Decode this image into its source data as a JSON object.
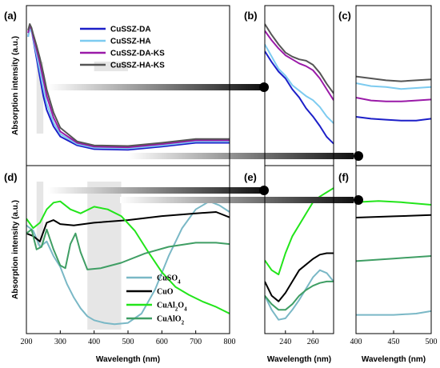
{
  "panel_labels": {
    "a": "(a)",
    "b": "(b)",
    "c": "(c)",
    "d": "(d)",
    "e": "(e)",
    "f": "(f)"
  },
  "axes": {
    "ylabel": "Absorption intensity (a.u.)",
    "xlabel": "Wavelength (nm)",
    "main_x_ticks": [
      "200",
      "300",
      "400",
      "500",
      "600",
      "700",
      "800"
    ],
    "zoom_e_ticks": [
      "240",
      "260"
    ],
    "zoom_f_ticks": [
      "400",
      "450",
      "500"
    ]
  },
  "colors": {
    "CuSSZ-DA": "#1c1fc8",
    "CuSSZ-HA": "#7dcbf0",
    "CuSSZ-DA-KS": "#9a1aa8",
    "CuSSZ-HA-KS": "#555555",
    "CuSO4": "#7ab8c6",
    "CuO": "#000000",
    "CuAl2O4": "#22e51a",
    "CuAlO2": "#3f9e64",
    "highlight": "#e6e6e6"
  },
  "chart_data": [
    {
      "type": "line",
      "panel": "a",
      "xlabel": "",
      "ylabel": "Absorption intensity (a.u.)",
      "xlim": [
        200,
        800
      ],
      "legend_position": "top-center",
      "highlight_ranges": [
        [
          230,
          250
        ],
        [
          400,
          500
        ]
      ],
      "series": [
        {
          "name": "CuSSZ-DA",
          "x": [
            205,
            210,
            215,
            220,
            230,
            240,
            250,
            260,
            280,
            300,
            350,
            400,
            500,
            600,
            700,
            800
          ],
          "y": [
            0.9,
            0.97,
            0.95,
            0.88,
            0.73,
            0.58,
            0.43,
            0.32,
            0.19,
            0.11,
            0.04,
            0.01,
            0.005,
            0.03,
            0.06,
            0.06
          ]
        },
        {
          "name": "CuSSZ-HA",
          "x": [
            205,
            210,
            215,
            220,
            230,
            240,
            250,
            260,
            280,
            300,
            350,
            400,
            500,
            600,
            700,
            800
          ],
          "y": [
            0.9,
            0.96,
            0.94,
            0.89,
            0.76,
            0.63,
            0.49,
            0.37,
            0.22,
            0.13,
            0.05,
            0.02,
            0.015,
            0.04,
            0.07,
            0.07
          ]
        },
        {
          "name": "CuSSZ-DA-KS",
          "x": [
            205,
            210,
            215,
            220,
            230,
            240,
            250,
            260,
            280,
            300,
            350,
            400,
            500,
            600,
            700,
            800
          ],
          "y": [
            0.93,
            0.99,
            0.96,
            0.9,
            0.8,
            0.69,
            0.56,
            0.43,
            0.26,
            0.15,
            0.06,
            0.03,
            0.025,
            0.05,
            0.08,
            0.08
          ]
        },
        {
          "name": "CuSSZ-HA-KS",
          "x": [
            205,
            210,
            215,
            220,
            230,
            240,
            250,
            260,
            280,
            300,
            350,
            400,
            500,
            600,
            700,
            800
          ],
          "y": [
            0.95,
            1.0,
            0.97,
            0.92,
            0.83,
            0.73,
            0.61,
            0.48,
            0.3,
            0.18,
            0.07,
            0.04,
            0.035,
            0.06,
            0.09,
            0.09
          ]
        }
      ]
    },
    {
      "type": "line",
      "panel": "b",
      "xlabel": "",
      "ylabel": "",
      "xlim": [
        230,
        250
      ],
      "series": [
        {
          "name": "CuSSZ-DA",
          "x": [
            230,
            232,
            234,
            236,
            238,
            240,
            242,
            244,
            246,
            248,
            250
          ],
          "y": [
            0.8,
            0.72,
            0.65,
            0.6,
            0.52,
            0.46,
            0.38,
            0.32,
            0.25,
            0.17,
            0.12
          ]
        },
        {
          "name": "CuSSZ-HA",
          "x": [
            230,
            232,
            234,
            236,
            238,
            240,
            242,
            244,
            246,
            248,
            250
          ],
          "y": [
            0.85,
            0.76,
            0.67,
            0.62,
            0.55,
            0.51,
            0.47,
            0.44,
            0.39,
            0.32,
            0.27
          ]
        },
        {
          "name": "CuSSZ-DA-KS",
          "x": [
            230,
            232,
            234,
            236,
            238,
            240,
            242,
            244,
            246,
            248,
            250
          ],
          "y": [
            0.95,
            0.88,
            0.82,
            0.77,
            0.74,
            0.71,
            0.69,
            0.66,
            0.6,
            0.52,
            0.44
          ]
        },
        {
          "name": "CuSSZ-HA-KS",
          "x": [
            230,
            232,
            234,
            236,
            238,
            240,
            242,
            244,
            246,
            248,
            250
          ],
          "y": [
            1.0,
            0.92,
            0.85,
            0.79,
            0.76,
            0.74,
            0.73,
            0.7,
            0.64,
            0.56,
            0.49
          ]
        }
      ]
    },
    {
      "type": "line",
      "panel": "c",
      "xlabel": "",
      "ylabel": "",
      "xlim": [
        400,
        500
      ],
      "series": [
        {
          "name": "CuSSZ-DA",
          "x": [
            400,
            420,
            440,
            460,
            480,
            500
          ],
          "y": [
            0.2,
            0.18,
            0.17,
            0.16,
            0.16,
            0.18
          ]
        },
        {
          "name": "CuSSZ-HA",
          "x": [
            400,
            420,
            440,
            460,
            480,
            500
          ],
          "y": [
            0.55,
            0.52,
            0.51,
            0.49,
            0.5,
            0.51
          ]
        },
        {
          "name": "CuSSZ-DA-KS",
          "x": [
            400,
            420,
            440,
            460,
            480,
            500
          ],
          "y": [
            0.4,
            0.37,
            0.36,
            0.36,
            0.37,
            0.38
          ]
        },
        {
          "name": "CuSSZ-HA-KS",
          "x": [
            400,
            420,
            440,
            460,
            480,
            500
          ],
          "y": [
            0.62,
            0.6,
            0.58,
            0.57,
            0.58,
            0.59
          ]
        }
      ]
    },
    {
      "type": "line",
      "panel": "d",
      "xlabel": "Wavelength (nm)",
      "ylabel": "Absorption intensity (a.u.)",
      "xlim": [
        200,
        800
      ],
      "x_ticks": [
        200,
        300,
        400,
        500,
        600,
        700,
        800
      ],
      "legend_position": "bottom-center",
      "highlight_ranges": [
        [
          230,
          250
        ],
        [
          380,
          480
        ]
      ],
      "series": [
        {
          "name": "CuSO4",
          "x": [
            200,
            220,
            240,
            260,
            280,
            300,
            320,
            340,
            360,
            380,
            400,
            430,
            460,
            500,
            540,
            580,
            620,
            660,
            700,
            740,
            770,
            800
          ],
          "y": [
            0.78,
            0.74,
            0.62,
            0.66,
            0.55,
            0.47,
            0.34,
            0.24,
            0.16,
            0.1,
            0.07,
            0.05,
            0.04,
            0.05,
            0.12,
            0.3,
            0.55,
            0.76,
            0.9,
            0.96,
            0.93,
            0.88
          ]
        },
        {
          "name": "CuO",
          "x": [
            200,
            220,
            240,
            260,
            280,
            300,
            340,
            400,
            500,
            600,
            700,
            760,
            800
          ],
          "y": [
            0.72,
            0.7,
            0.66,
            0.8,
            0.82,
            0.79,
            0.78,
            0.8,
            0.82,
            0.85,
            0.87,
            0.88,
            0.84
          ]
        },
        {
          "name": "CuAl2O4",
          "x": [
            200,
            220,
            240,
            260,
            280,
            300,
            330,
            360,
            400,
            440,
            480,
            520,
            560,
            600,
            640,
            680,
            720,
            760,
            800
          ],
          "y": [
            0.83,
            0.76,
            0.8,
            0.9,
            0.95,
            0.96,
            0.9,
            0.87,
            0.92,
            0.9,
            0.85,
            0.74,
            0.58,
            0.43,
            0.32,
            0.26,
            0.21,
            0.17,
            0.12
          ]
        },
        {
          "name": "CuAlO2",
          "x": [
            200,
            215,
            230,
            245,
            260,
            280,
            300,
            315,
            330,
            345,
            360,
            380,
            420,
            480,
            550,
            620,
            700,
            760,
            800
          ],
          "y": [
            0.72,
            0.75,
            0.6,
            0.62,
            0.75,
            0.6,
            0.48,
            0.46,
            0.64,
            0.72,
            0.58,
            0.45,
            0.46,
            0.5,
            0.57,
            0.62,
            0.65,
            0.65,
            0.64
          ]
        }
      ]
    },
    {
      "type": "line",
      "panel": "e",
      "xlabel": "Wavelength (nm)",
      "ylabel": "",
      "xlim": [
        225,
        275
      ],
      "x_ticks": [
        240,
        260
      ],
      "series": [
        {
          "name": "CuSO4",
          "x": [
            225,
            230,
            235,
            240,
            245,
            250,
            255,
            260,
            265,
            270,
            275
          ],
          "y": [
            0.2,
            0.1,
            0.03,
            0.04,
            0.1,
            0.17,
            0.25,
            0.33,
            0.38,
            0.36,
            0.3
          ]
        },
        {
          "name": "CuO",
          "x": [
            225,
            230,
            235,
            240,
            245,
            250,
            255,
            260,
            265,
            270,
            275
          ],
          "y": [
            0.3,
            0.2,
            0.16,
            0.22,
            0.3,
            0.38,
            0.42,
            0.46,
            0.49,
            0.5,
            0.5
          ]
        },
        {
          "name": "CuAl2O4",
          "x": [
            225,
            230,
            235,
            240,
            245,
            250,
            255,
            260,
            265,
            270,
            275
          ],
          "y": [
            0.45,
            0.38,
            0.35,
            0.5,
            0.62,
            0.7,
            0.78,
            0.86,
            0.9,
            0.93,
            0.96
          ]
        },
        {
          "name": "CuAlO2",
          "x": [
            225,
            230,
            235,
            240,
            245,
            250,
            255,
            260,
            265,
            270,
            275
          ],
          "y": [
            0.2,
            0.14,
            0.1,
            0.1,
            0.14,
            0.2,
            0.24,
            0.27,
            0.29,
            0.3,
            0.3
          ]
        }
      ]
    },
    {
      "type": "line",
      "panel": "f",
      "xlabel": "Wavelength (nm)",
      "ylabel": "",
      "xlim": [
        400,
        500
      ],
      "x_ticks": [
        400,
        450,
        500
      ],
      "series": [
        {
          "name": "CuSO4",
          "x": [
            400,
            450,
            480,
            500
          ],
          "y": [
            0.04,
            0.04,
            0.05,
            0.07
          ]
        },
        {
          "name": "CuO",
          "x": [
            400,
            450,
            500
          ],
          "y": [
            0.8,
            0.81,
            0.82
          ]
        },
        {
          "name": "CuAl2O4",
          "x": [
            400,
            430,
            460,
            500
          ],
          "y": [
            0.92,
            0.93,
            0.92,
            0.9
          ]
        },
        {
          "name": "CuAlO2",
          "x": [
            400,
            450,
            500
          ],
          "y": [
            0.46,
            0.48,
            0.5
          ]
        }
      ]
    }
  ]
}
